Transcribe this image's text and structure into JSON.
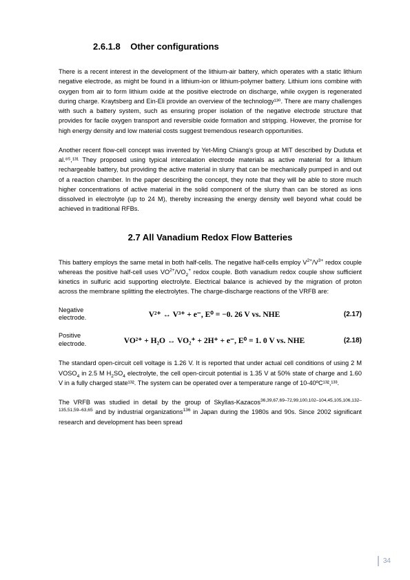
{
  "section1": {
    "number": "2.6.1.8",
    "title": "Other configurations",
    "para1": "There is a recent interest in the development of the lithium-air battery, which operates with a static lithium negative electrode, as might be found in a lithium-ion or lithium-polymer battery. Lithium ions combine with oxygen from air to form lithium oxide at the positive electrode on discharge, while oxygen is regenerated during charge. Kraytsberg and Ein-Eli provide an overview of the technology¹³⁰. There are many challenges with such a battery system, such as ensuring proper isolation of the negative electrode structure that provides for facile oxygen transport and reversible oxide formation and stripping. However, the promise for high energy density and low material costs suggest tremendous research opportunities.",
    "para2": "Another recent flow-cell concept was invented by Yet-Ming Chiang's group at MIT described by Duduta et al.⁸⁵,¹³¹ They proposed using typical intercalation electrode materials as active material for a lithium rechargeable battery, but providing the active material in slurry that can be mechanically pumped in and out of a reaction chamber. In the paper describing the concept, they note that they will be able to store much higher concentrations of active material in the solid component of the slurry than can be stored as ions dissolved in electrolyte (up to 24 M), thereby increasing the energy density well beyond what could be achieved in traditional RFBs."
  },
  "section2": {
    "number": "2.7",
    "title": "All Vanadium Redox Flow Batteries",
    "para1_pre": "This battery employs the same metal in both half-cells. The negative half-cells employ V",
    "para1_mid1": " redox couple whereas the positive half-cell uses VO",
    "para1_mid2": " redox couple. Both vanadium redox couple show sufficient kinetics in sulfuric acid supporting electrolyte. Electrical balance is achieved by the migration of proton across the membrane splitting the electrolytes. The charge-discharge reactions of the VRFB are:",
    "eq1": {
      "label": "Negative electrode.",
      "body": "V²⁺ ↔ V³⁺ + e⁻,  E⁰ = −0. 26 V vs. NHE",
      "num": "(2.17)"
    },
    "eq2": {
      "label": "Positive electrode.",
      "body": "VO²⁺ +  H₂O ↔ VO₂⁺ + 2H⁺ + e⁻,  E⁰ = 1. 0 V vs. NHE",
      "num": "(2.18)"
    },
    "para2_pre": "The standard open-circuit cell voltage is 1.26 V. It is reported that under actual cell conditions of using 2 M VOSO",
    "para2_mid1": " in 2.5 M H",
    "para2_mid2": "SO",
    "para2_mid3": " electrolyte, the cell open-circuit potential is 1.35 V at 50% state of charge and 1.60 V in a fully charged state¹³². The system can be operated over a temperature range of 10-40ºC¹³²,¹³³.",
    "para3_pre": "The VRFB was studied in detail by the group of Skyllas-Kazacos",
    "para3_refs1": "36,39,67,69–72,99,100,102–104,45,105,106,132–135,51,59–63,65",
    "para3_mid": " and by industrial organizations",
    "para3_refs2": "136",
    "para3_end": " in Japan during the 1980s and 90s. Since 2002 significant research and development has been spread"
  },
  "pageNumber": "34"
}
